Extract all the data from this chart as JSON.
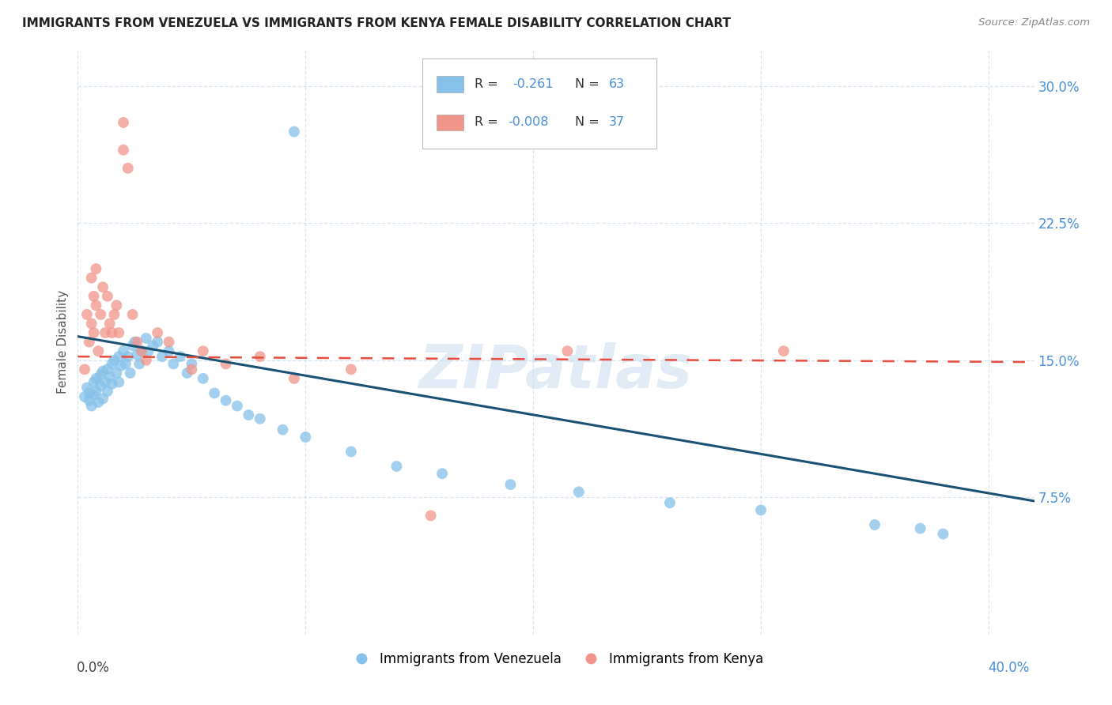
{
  "title": "IMMIGRANTS FROM VENEZUELA VS IMMIGRANTS FROM KENYA FEMALE DISABILITY CORRELATION CHART",
  "source": "Source: ZipAtlas.com",
  "ylabel": "Female Disability",
  "xlim": [
    0.0,
    0.42
  ],
  "ylim": [
    0.0,
    0.32
  ],
  "watermark": "ZIPatlas",
  "legend_r1": "R =  -0.261",
  "legend_n1": "N = 63",
  "legend_r2": "R = -0.008",
  "legend_n2": "N = 37",
  "label_venezuela": "Immigrants from Venezuela",
  "label_kenya": "Immigrants from Kenya",
  "color_venezuela": "#85C1E9",
  "color_kenya": "#F1948A",
  "trendline_venezuela_color": "#1A5276",
  "trendline_kenya_color": "#E74C3C",
  "venezuela_x": [
    0.003,
    0.004,
    0.005,
    0.005,
    0.006,
    0.007,
    0.007,
    0.008,
    0.008,
    0.009,
    0.01,
    0.01,
    0.011,
    0.011,
    0.012,
    0.013,
    0.013,
    0.014,
    0.015,
    0.015,
    0.016,
    0.017,
    0.018,
    0.018,
    0.019,
    0.02,
    0.021,
    0.022,
    0.023,
    0.024,
    0.025,
    0.026,
    0.027,
    0.028,
    0.03,
    0.031,
    0.033,
    0.035,
    0.037,
    0.04,
    0.042,
    0.045,
    0.048,
    0.05,
    0.055,
    0.06,
    0.065,
    0.07,
    0.075,
    0.08,
    0.09,
    0.095,
    0.1,
    0.12,
    0.14,
    0.16,
    0.19,
    0.22,
    0.26,
    0.3,
    0.35,
    0.37,
    0.38
  ],
  "venezuela_y": [
    0.13,
    0.135,
    0.128,
    0.132,
    0.125,
    0.138,
    0.131,
    0.14,
    0.133,
    0.127,
    0.142,
    0.136,
    0.144,
    0.129,
    0.138,
    0.145,
    0.133,
    0.141,
    0.148,
    0.137,
    0.15,
    0.143,
    0.152,
    0.138,
    0.147,
    0.155,
    0.148,
    0.152,
    0.143,
    0.158,
    0.16,
    0.153,
    0.148,
    0.155,
    0.162,
    0.155,
    0.158,
    0.16,
    0.152,
    0.155,
    0.148,
    0.152,
    0.143,
    0.148,
    0.14,
    0.132,
    0.128,
    0.125,
    0.12,
    0.118,
    0.112,
    0.275,
    0.108,
    0.1,
    0.092,
    0.088,
    0.082,
    0.078,
    0.072,
    0.068,
    0.06,
    0.058,
    0.055
  ],
  "kenya_x": [
    0.003,
    0.004,
    0.005,
    0.006,
    0.006,
    0.007,
    0.007,
    0.008,
    0.008,
    0.009,
    0.01,
    0.011,
    0.012,
    0.013,
    0.014,
    0.015,
    0.016,
    0.017,
    0.018,
    0.02,
    0.02,
    0.022,
    0.024,
    0.026,
    0.028,
    0.03,
    0.035,
    0.04,
    0.05,
    0.055,
    0.065,
    0.08,
    0.095,
    0.12,
    0.155,
    0.215,
    0.31
  ],
  "kenya_y": [
    0.145,
    0.175,
    0.16,
    0.17,
    0.195,
    0.185,
    0.165,
    0.2,
    0.18,
    0.155,
    0.175,
    0.19,
    0.165,
    0.185,
    0.17,
    0.165,
    0.175,
    0.18,
    0.165,
    0.28,
    0.265,
    0.255,
    0.175,
    0.16,
    0.155,
    0.15,
    0.165,
    0.16,
    0.145,
    0.155,
    0.148,
    0.152,
    0.14,
    0.145,
    0.065,
    0.155,
    0.155
  ],
  "venezuela_trendline_x": [
    0.0,
    0.42
  ],
  "venezuela_trendline_y": [
    0.163,
    0.073
  ],
  "kenya_trendline_x": [
    0.0,
    0.42
  ],
  "kenya_trendline_y": [
    0.152,
    0.149
  ]
}
